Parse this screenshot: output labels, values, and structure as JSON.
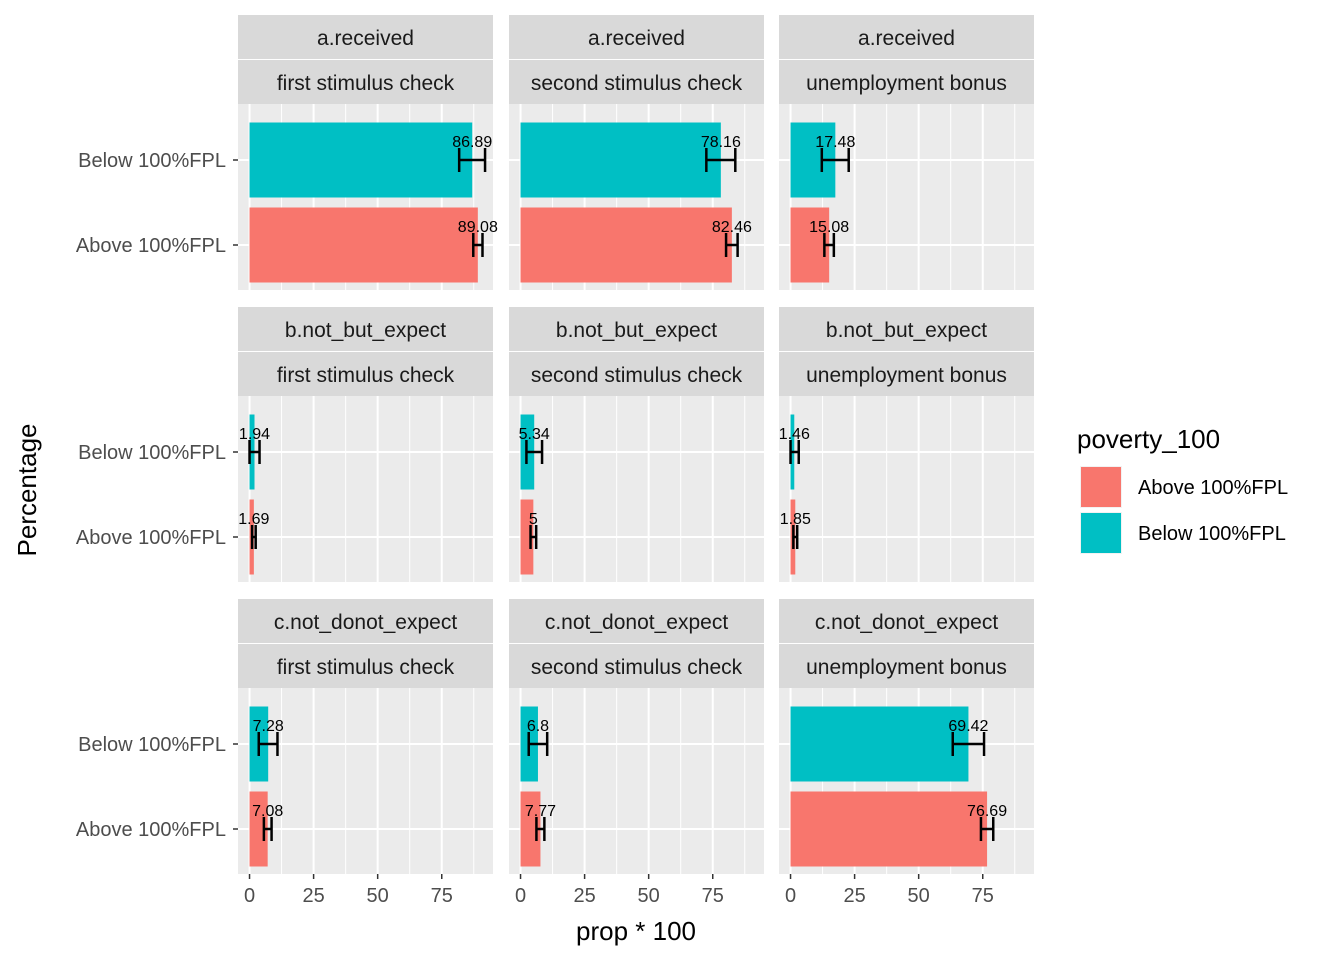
{
  "chart_data": {
    "type": "bar",
    "orientation": "horizontal",
    "facets": {
      "rows": [
        "a.received",
        "b.not_but_expect",
        "c.not_donot_expect"
      ],
      "cols": [
        "first stimulus check",
        "second stimulus check",
        "unemployment bonus"
      ]
    },
    "categories": [
      "Below 100%FPL",
      "Above 100%FPL"
    ],
    "xlabel": "prop * 100",
    "ylabel": "Percentage",
    "xlim": [
      -4.5,
      95
    ],
    "xticks": [
      0,
      25,
      50,
      75
    ],
    "grid": true,
    "legend": {
      "title": "poverty_100",
      "position": "right",
      "entries": [
        "Above 100%FPL",
        "Below 100%FPL"
      ]
    },
    "colors": {
      "Above 100%FPL": "#F8766D",
      "Below 100%FPL": "#00BFC4"
    },
    "panels": [
      {
        "row": "a.received",
        "col": "first stimulus check",
        "values": [
          {
            "group": "Below 100%FPL",
            "value": 86.89,
            "label": "86.89",
            "ci": [
              81.8,
              91.9
            ]
          },
          {
            "group": "Above 100%FPL",
            "value": 89.08,
            "label": "89.08",
            "ci": [
              87.3,
              90.9
            ]
          }
        ]
      },
      {
        "row": "a.received",
        "col": "second stimulus check",
        "values": [
          {
            "group": "Below 100%FPL",
            "value": 78.16,
            "label": "78.16",
            "ci": [
              72.5,
              83.8
            ]
          },
          {
            "group": "Above 100%FPL",
            "value": 82.46,
            "label": "82.46",
            "ci": [
              80.2,
              84.7
            ]
          }
        ]
      },
      {
        "row": "a.received",
        "col": "unemployment bonus",
        "values": [
          {
            "group": "Below 100%FPL",
            "value": 17.48,
            "label": "17.48",
            "ci": [
              12.2,
              22.7
            ]
          },
          {
            "group": "Above 100%FPL",
            "value": 15.08,
            "label": "15.08",
            "ci": [
              13.2,
              16.9
            ]
          }
        ]
      },
      {
        "row": "b.not_but_expect",
        "col": "first stimulus check",
        "values": [
          {
            "group": "Below 100%FPL",
            "value": 1.94,
            "label": "1.94",
            "ci": [
              0.0,
              3.9
            ]
          },
          {
            "group": "Above 100%FPL",
            "value": 1.69,
            "label": "1.69",
            "ci": [
              1.0,
              2.4
            ]
          }
        ]
      },
      {
        "row": "b.not_but_expect",
        "col": "second stimulus check",
        "values": [
          {
            "group": "Below 100%FPL",
            "value": 5.34,
            "label": "5.34",
            "ci": [
              2.3,
              8.4
            ]
          },
          {
            "group": "Above 100%FPL",
            "value": 5,
            "label": "5",
            "ci": [
              3.9,
              6.1
            ]
          }
        ]
      },
      {
        "row": "b.not_but_expect",
        "col": "unemployment bonus",
        "values": [
          {
            "group": "Below 100%FPL",
            "value": 1.46,
            "label": "1.46",
            "ci": [
              0.0,
              3.2
            ]
          },
          {
            "group": "Above 100%FPL",
            "value": 1.85,
            "label": "1.85",
            "ci": [
              1.1,
              2.6
            ]
          }
        ]
      },
      {
        "row": "c.not_donot_expect",
        "col": "first stimulus check",
        "values": [
          {
            "group": "Below 100%FPL",
            "value": 7.28,
            "label": "7.28",
            "ci": [
              3.6,
              10.9
            ]
          },
          {
            "group": "Above 100%FPL",
            "value": 7.08,
            "label": "7.08",
            "ci": [
              5.6,
              8.6
            ]
          }
        ]
      },
      {
        "row": "c.not_donot_expect",
        "col": "second stimulus check",
        "values": [
          {
            "group": "Below 100%FPL",
            "value": 6.8,
            "label": "6.8",
            "ci": [
              3.2,
              10.4
            ]
          },
          {
            "group": "Above 100%FPL",
            "value": 7.77,
            "label": "7.77",
            "ci": [
              6.2,
              9.3
            ]
          }
        ]
      },
      {
        "row": "c.not_donot_expect",
        "col": "unemployment bonus",
        "values": [
          {
            "group": "Below 100%FPL",
            "value": 69.42,
            "label": "69.42",
            "ci": [
              63.3,
              75.5
            ]
          },
          {
            "group": "Above 100%FPL",
            "value": 76.69,
            "label": "76.69",
            "ci": [
              74.3,
              79.1
            ]
          }
        ]
      }
    ]
  }
}
